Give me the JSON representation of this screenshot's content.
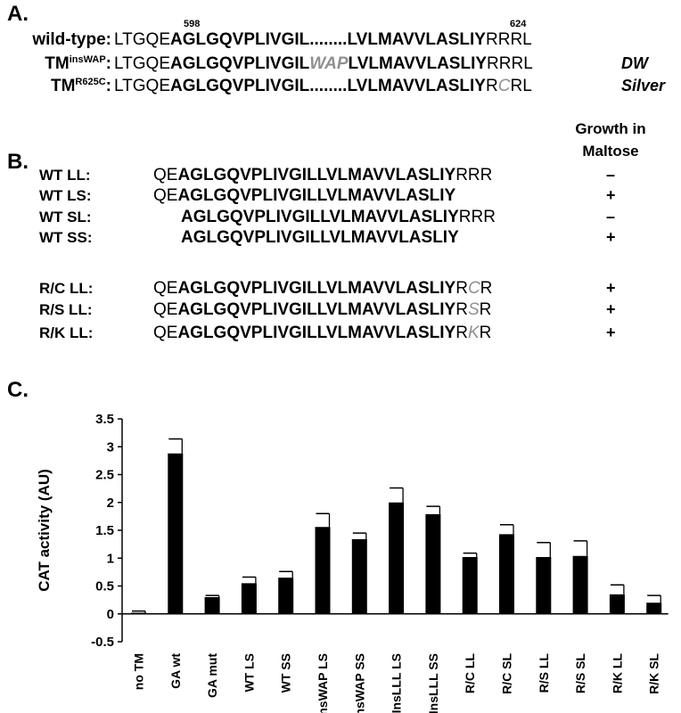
{
  "panel_a": {
    "label": "A.",
    "pos_start": "598",
    "pos_end": "624",
    "rows": [
      {
        "name": "wild-type:",
        "name_sup": "",
        "seq_pre": "LTGQE",
        "seq_core1": "AGLGQVPLIVGIL",
        "insert": "........",
        "seq_core2": "LVLMAVVLASLIY",
        "tail_pre": "RR",
        "tail_mut": "",
        "tail_post": "RL",
        "phenotype": ""
      },
      {
        "name": "TM",
        "name_sup": "insWAP",
        "name_colon": ":",
        "seq_pre": "LTGQE",
        "seq_core1": "AGLGQVPLIVGIL",
        "insert": "WAP",
        "seq_core2": "LVLMAVVLASLIY",
        "tail_pre": "RR",
        "tail_mut": "",
        "tail_post": "RL",
        "phenotype": "DW"
      },
      {
        "name": "TM",
        "name_sup": "R625C",
        "name_colon": ":",
        "seq_pre": "LTGQE",
        "seq_core1": "AGLGQVPLIVGIL",
        "insert": "........",
        "seq_core2": "LVLMAVVLASLIY",
        "tail_pre": "R",
        "tail_mut": "C",
        "tail_post": "RL",
        "phenotype": "Silver"
      }
    ]
  },
  "panel_b": {
    "label": "B.",
    "header_line1": "Growth in",
    "header_line2": "Maltose",
    "rows": [
      {
        "name": "WT LL:",
        "pre": "QE",
        "core": "AGLGQVPLIVGILLVLMAVVLASLIY",
        "t1": "RRR",
        "mut": "",
        "t2": "",
        "growth": "–"
      },
      {
        "name": "WT LS:",
        "pre": "QE",
        "core": "AGLGQVPLIVGILLVLMAVVLASLIY",
        "t1": "",
        "mut": "",
        "t2": "",
        "growth": "+"
      },
      {
        "name": "WT SL:",
        "pre": "",
        "core": "AGLGQVPLIVGILLVLMAVVLASLIY",
        "t1": "RRR",
        "mut": "",
        "t2": "",
        "growth": "–"
      },
      {
        "name": "WT SS:",
        "pre": "",
        "core": "AGLGQVPLIVGILLVLMAVVLASLIY",
        "t1": "",
        "mut": "",
        "t2": "",
        "growth": "+"
      },
      {
        "name": "R/C LL:",
        "pre": "QE",
        "core": "AGLGQVPLIVGILLVLMAVVLASLIY",
        "t1": "R",
        "mut": "C",
        "t2": "R",
        "growth": "+"
      },
      {
        "name": "R/S LL:",
        "pre": "QE",
        "core": "AGLGQVPLIVGILLVLMAVVLASLIY",
        "t1": "R",
        "mut": "S",
        "t2": "R",
        "growth": "+"
      },
      {
        "name": "R/K LL:",
        "pre": "QE",
        "core": "AGLGQVPLIVGILLVLMAVVLASLIY",
        "t1": "R",
        "mut": "K",
        "t2": "R",
        "growth": "+"
      }
    ]
  },
  "panel_c": {
    "label": "C."
  },
  "chart_data": {
    "type": "bar",
    "title": "",
    "xlabel": "",
    "ylabel": "CAT activity (AU)",
    "ylim": [
      -0.5,
      3.5
    ],
    "yticks": [
      "-0.5",
      "0",
      "0.5",
      "1",
      "1.5",
      "2",
      "2.5",
      "3",
      "3.5"
    ],
    "categories": [
      "no TM",
      "GA wt",
      "GA mut",
      "WT LS",
      "WT SS",
      "InsWAP LS",
      "InsWAP SS",
      "InsLLL LS",
      "InsLLL SS",
      "R/C LL",
      "R/C SL",
      "R/S LL",
      "R/S SL",
      "R/K LL",
      "R/K SL"
    ],
    "values": [
      0.02,
      2.88,
      0.3,
      0.55,
      0.65,
      1.56,
      1.34,
      2.0,
      1.79,
      1.02,
      1.43,
      1.02,
      1.04,
      0.35,
      0.2
    ],
    "errors": [
      0.03,
      0.26,
      0.03,
      0.11,
      0.11,
      0.24,
      0.11,
      0.26,
      0.14,
      0.07,
      0.17,
      0.26,
      0.27,
      0.17,
      0.13
    ],
    "bar_color": "#000000",
    "grid": false,
    "legend": "none"
  }
}
